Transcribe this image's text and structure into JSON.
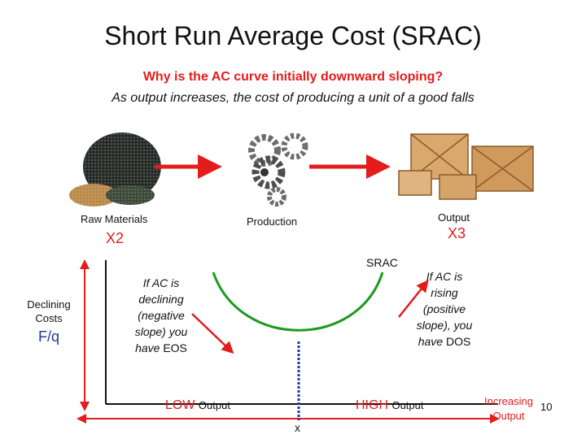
{
  "title": "Short Run Average Cost (SRAC)",
  "subtitle": {
    "question": "Why is the AC curve initially downward sloping?",
    "answer": "As output increases, the cost of producing a unit of a good falls"
  },
  "stages": [
    {
      "label": "Raw Materials"
    },
    {
      "label": "Production"
    },
    {
      "label": "Output"
    }
  ],
  "multipliers": [
    "X2",
    "X3"
  ],
  "curve_label": "SRAC",
  "y_axis": {
    "label": "Declining Costs",
    "symbol": "F/q"
  },
  "left_note": {
    "text": "If AC is declining (negative slope) you have",
    "term": "EOS"
  },
  "right_note": {
    "text": "If AC is rising (positive slope), you have",
    "term": "DOS"
  },
  "x_axis": {
    "low": "LOW",
    "low_suffix": "Output",
    "high": "HIGH",
    "high_suffix": "Output",
    "point": "x",
    "label": "Increasing Output"
  },
  "page_number": "10"
}
